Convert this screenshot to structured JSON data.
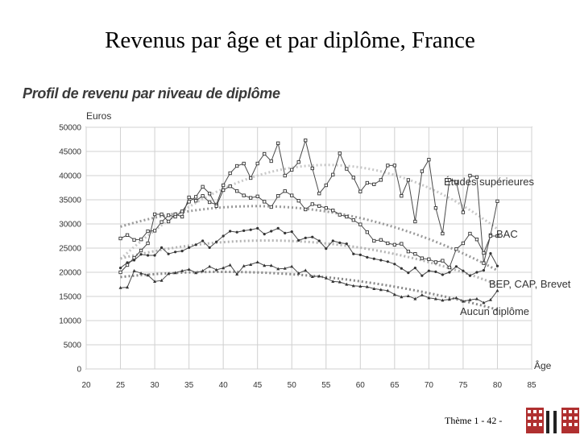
{
  "slide": {
    "title": "Revenus par âge et par diplôme, France",
    "footer": "Thème 1 - 42 -"
  },
  "chart_data": {
    "type": "line",
    "title": "Profil de revenu par niveau de diplôme",
    "ylabel": "Euros",
    "xlabel": "Âge",
    "xlim": [
      20,
      85
    ],
    "ylim": [
      0,
      50000
    ],
    "x_ticks": [
      20,
      25,
      30,
      35,
      40,
      45,
      50,
      55,
      60,
      65,
      70,
      75,
      80,
      85
    ],
    "y_ticks": [
      0,
      5000,
      10000,
      15000,
      20000,
      25000,
      30000,
      35000,
      40000,
      45000,
      50000
    ],
    "grid": true,
    "series": [
      {
        "name": "Études supérieures",
        "color": "#4a4a4a",
        "trend_color": "#c8c8c8",
        "x": [
          25,
          26,
          27,
          28,
          29,
          30,
          31,
          32,
          33,
          34,
          35,
          36,
          37,
          38,
          39,
          40,
          41,
          42,
          43,
          44,
          45,
          46,
          47,
          48,
          49,
          50,
          51,
          52,
          53,
          54,
          55,
          56,
          57,
          58,
          59,
          60,
          61,
          62,
          63,
          64,
          65,
          66,
          67,
          68,
          69,
          70,
          71,
          72,
          73,
          74,
          75,
          76,
          77,
          78,
          79,
          80
        ],
        "values": [
          20000,
          21500,
          23000,
          24500,
          26000,
          32000,
          32000,
          30500,
          32000,
          31500,
          35500,
          34800,
          35800,
          34500,
          34000,
          38000,
          40500,
          42000,
          42500,
          39500,
          42500,
          44500,
          43000,
          46700,
          40000,
          41200,
          42800,
          47300,
          41500,
          36300,
          38000,
          40200,
          44600,
          41400,
          39600,
          36700,
          38500,
          38200,
          39100,
          42100,
          42100,
          35800,
          39100,
          30500,
          40900,
          43300,
          33300,
          28000,
          39100,
          38700,
          32400,
          40000,
          39700,
          21900,
          27700,
          34700
        ]
      },
      {
        "name": "BAC",
        "color": "#4a4a4a",
        "trend_color": "#9a9a9a",
        "x": [
          25,
          26,
          27,
          28,
          29,
          30,
          31,
          32,
          33,
          34,
          35,
          36,
          37,
          38,
          39,
          40,
          41,
          42,
          43,
          44,
          45,
          46,
          47,
          48,
          49,
          50,
          51,
          52,
          53,
          54,
          55,
          56,
          57,
          58,
          59,
          60,
          61,
          62,
          63,
          64,
          65,
          66,
          67,
          68,
          69,
          70,
          71,
          72,
          73,
          74,
          75,
          76,
          77,
          78,
          79,
          80
        ],
        "values": [
          27000,
          27700,
          26700,
          26800,
          28500,
          28600,
          30400,
          31800,
          31500,
          32600,
          34600,
          35600,
          37700,
          36300,
          33700,
          37000,
          37800,
          36800,
          35900,
          35400,
          35700,
          34600,
          33500,
          35800,
          36800,
          35900,
          34800,
          33000,
          34100,
          33700,
          33300,
          32800,
          31900,
          31500,
          30800,
          29900,
          28300,
          26500,
          26700,
          26000,
          25700,
          25900,
          24300,
          23800,
          22900,
          22700,
          22100,
          22400,
          21000,
          24800,
          26000,
          28000,
          26800,
          24000,
          27500,
          27500
        ]
      },
      {
        "name": "BEP, CAP, Brevet",
        "color": "#4a4a4a",
        "trend_color": "#b4b4b4",
        "x": [
          25,
          26,
          27,
          28,
          29,
          30,
          31,
          32,
          33,
          34,
          35,
          36,
          37,
          38,
          39,
          40,
          41,
          42,
          43,
          44,
          45,
          46,
          47,
          48,
          49,
          50,
          51,
          52,
          53,
          54,
          55,
          56,
          57,
          58,
          59,
          60,
          61,
          62,
          63,
          64,
          65,
          66,
          67,
          68,
          69,
          70,
          71,
          72,
          73,
          74,
          75,
          76,
          77,
          78,
          79,
          80
        ],
        "values": [
          20900,
          22000,
          22500,
          23700,
          23500,
          23500,
          25100,
          23800,
          24200,
          24400,
          25100,
          25700,
          26500,
          25100,
          26300,
          27500,
          28500,
          28300,
          28600,
          28800,
          29100,
          27900,
          28500,
          29100,
          28100,
          28400,
          26600,
          27100,
          27300,
          26500,
          24900,
          26500,
          26100,
          25900,
          23800,
          23600,
          23100,
          22800,
          22500,
          22200,
          21700,
          20800,
          19900,
          20900,
          19300,
          20300,
          20100,
          19500,
          20000,
          21200,
          20300,
          19300,
          20000,
          20400,
          23900,
          21300
        ]
      },
      {
        "name": "Aucun diplôme",
        "color": "#4a4a4a",
        "trend_color": "#888888",
        "x": [
          25,
          26,
          27,
          28,
          29,
          30,
          31,
          32,
          33,
          34,
          35,
          36,
          37,
          38,
          39,
          40,
          41,
          42,
          43,
          44,
          45,
          46,
          47,
          48,
          49,
          50,
          51,
          52,
          53,
          54,
          55,
          56,
          57,
          58,
          59,
          60,
          61,
          62,
          63,
          64,
          65,
          66,
          67,
          68,
          69,
          70,
          71,
          72,
          73,
          74,
          75,
          76,
          77,
          78,
          79,
          80
        ],
        "values": [
          16800,
          16900,
          20300,
          19800,
          19400,
          18100,
          18300,
          19700,
          19900,
          20300,
          20600,
          19900,
          20300,
          21200,
          20500,
          20900,
          21500,
          19600,
          21300,
          21600,
          22100,
          21400,
          21400,
          20700,
          20800,
          21200,
          19800,
          20400,
          19100,
          19200,
          18800,
          18100,
          18000,
          17500,
          17200,
          17100,
          17000,
          16600,
          16400,
          16200,
          15400,
          14900,
          15100,
          14500,
          15300,
          14700,
          14500,
          14200,
          14400,
          14700,
          14000,
          14300,
          14500,
          13700,
          14300,
          16200
        ]
      }
    ],
    "series_labels": [
      "Études supérieures",
      "BAC",
      "BEP, CAP, Brevet",
      "Aucun diplôme"
    ]
  }
}
